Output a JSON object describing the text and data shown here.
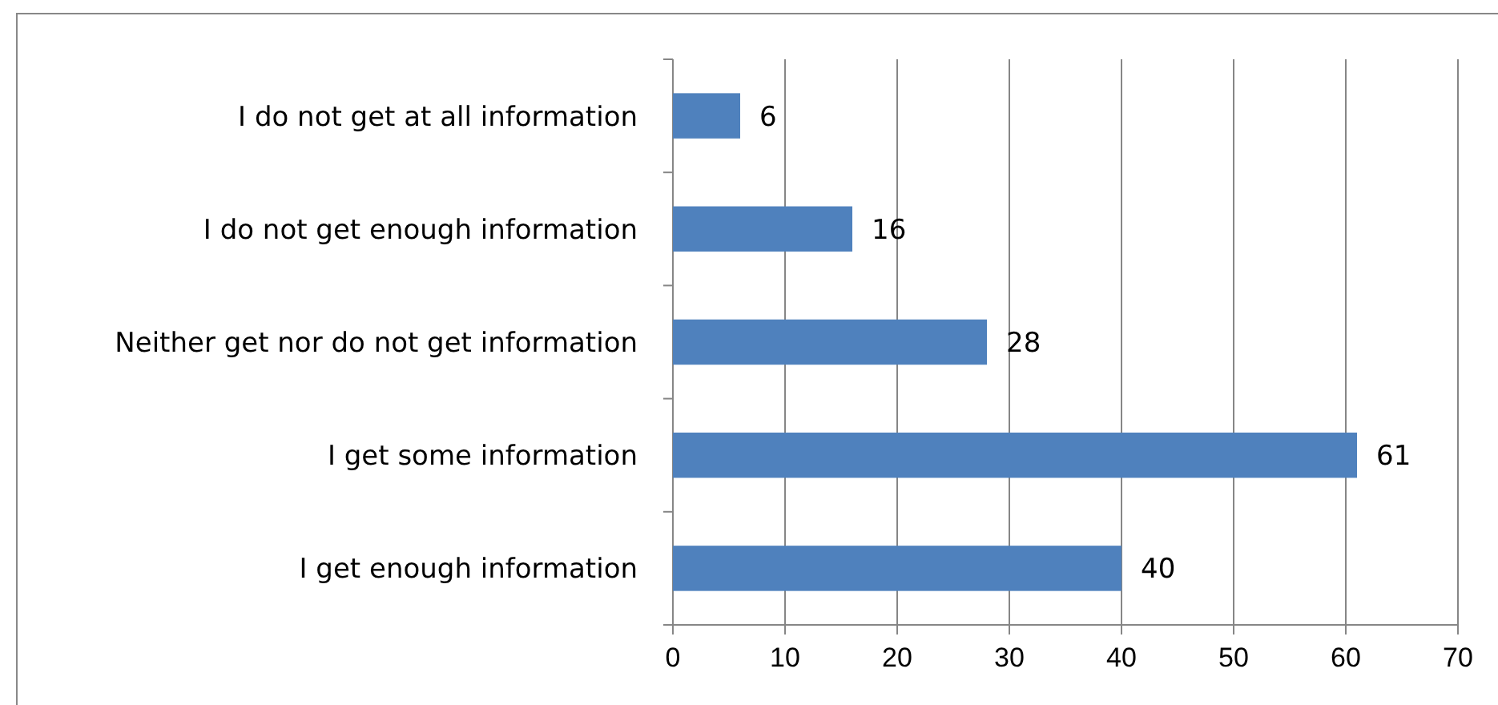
{
  "chart_data": {
    "type": "bar",
    "orientation": "horizontal",
    "categories": [
      "I do not get at all information",
      "I do not get enough information",
      "Neither get nor do not get information",
      "I get some information",
      "I get enough information"
    ],
    "values": [
      6,
      16,
      28,
      61,
      40
    ],
    "color": "#4f81bd",
    "xlim": [
      0,
      70
    ],
    "xticks": [
      0,
      10,
      20,
      30,
      40,
      50,
      60,
      70
    ],
    "grid": "x",
    "data_labels": true
  }
}
